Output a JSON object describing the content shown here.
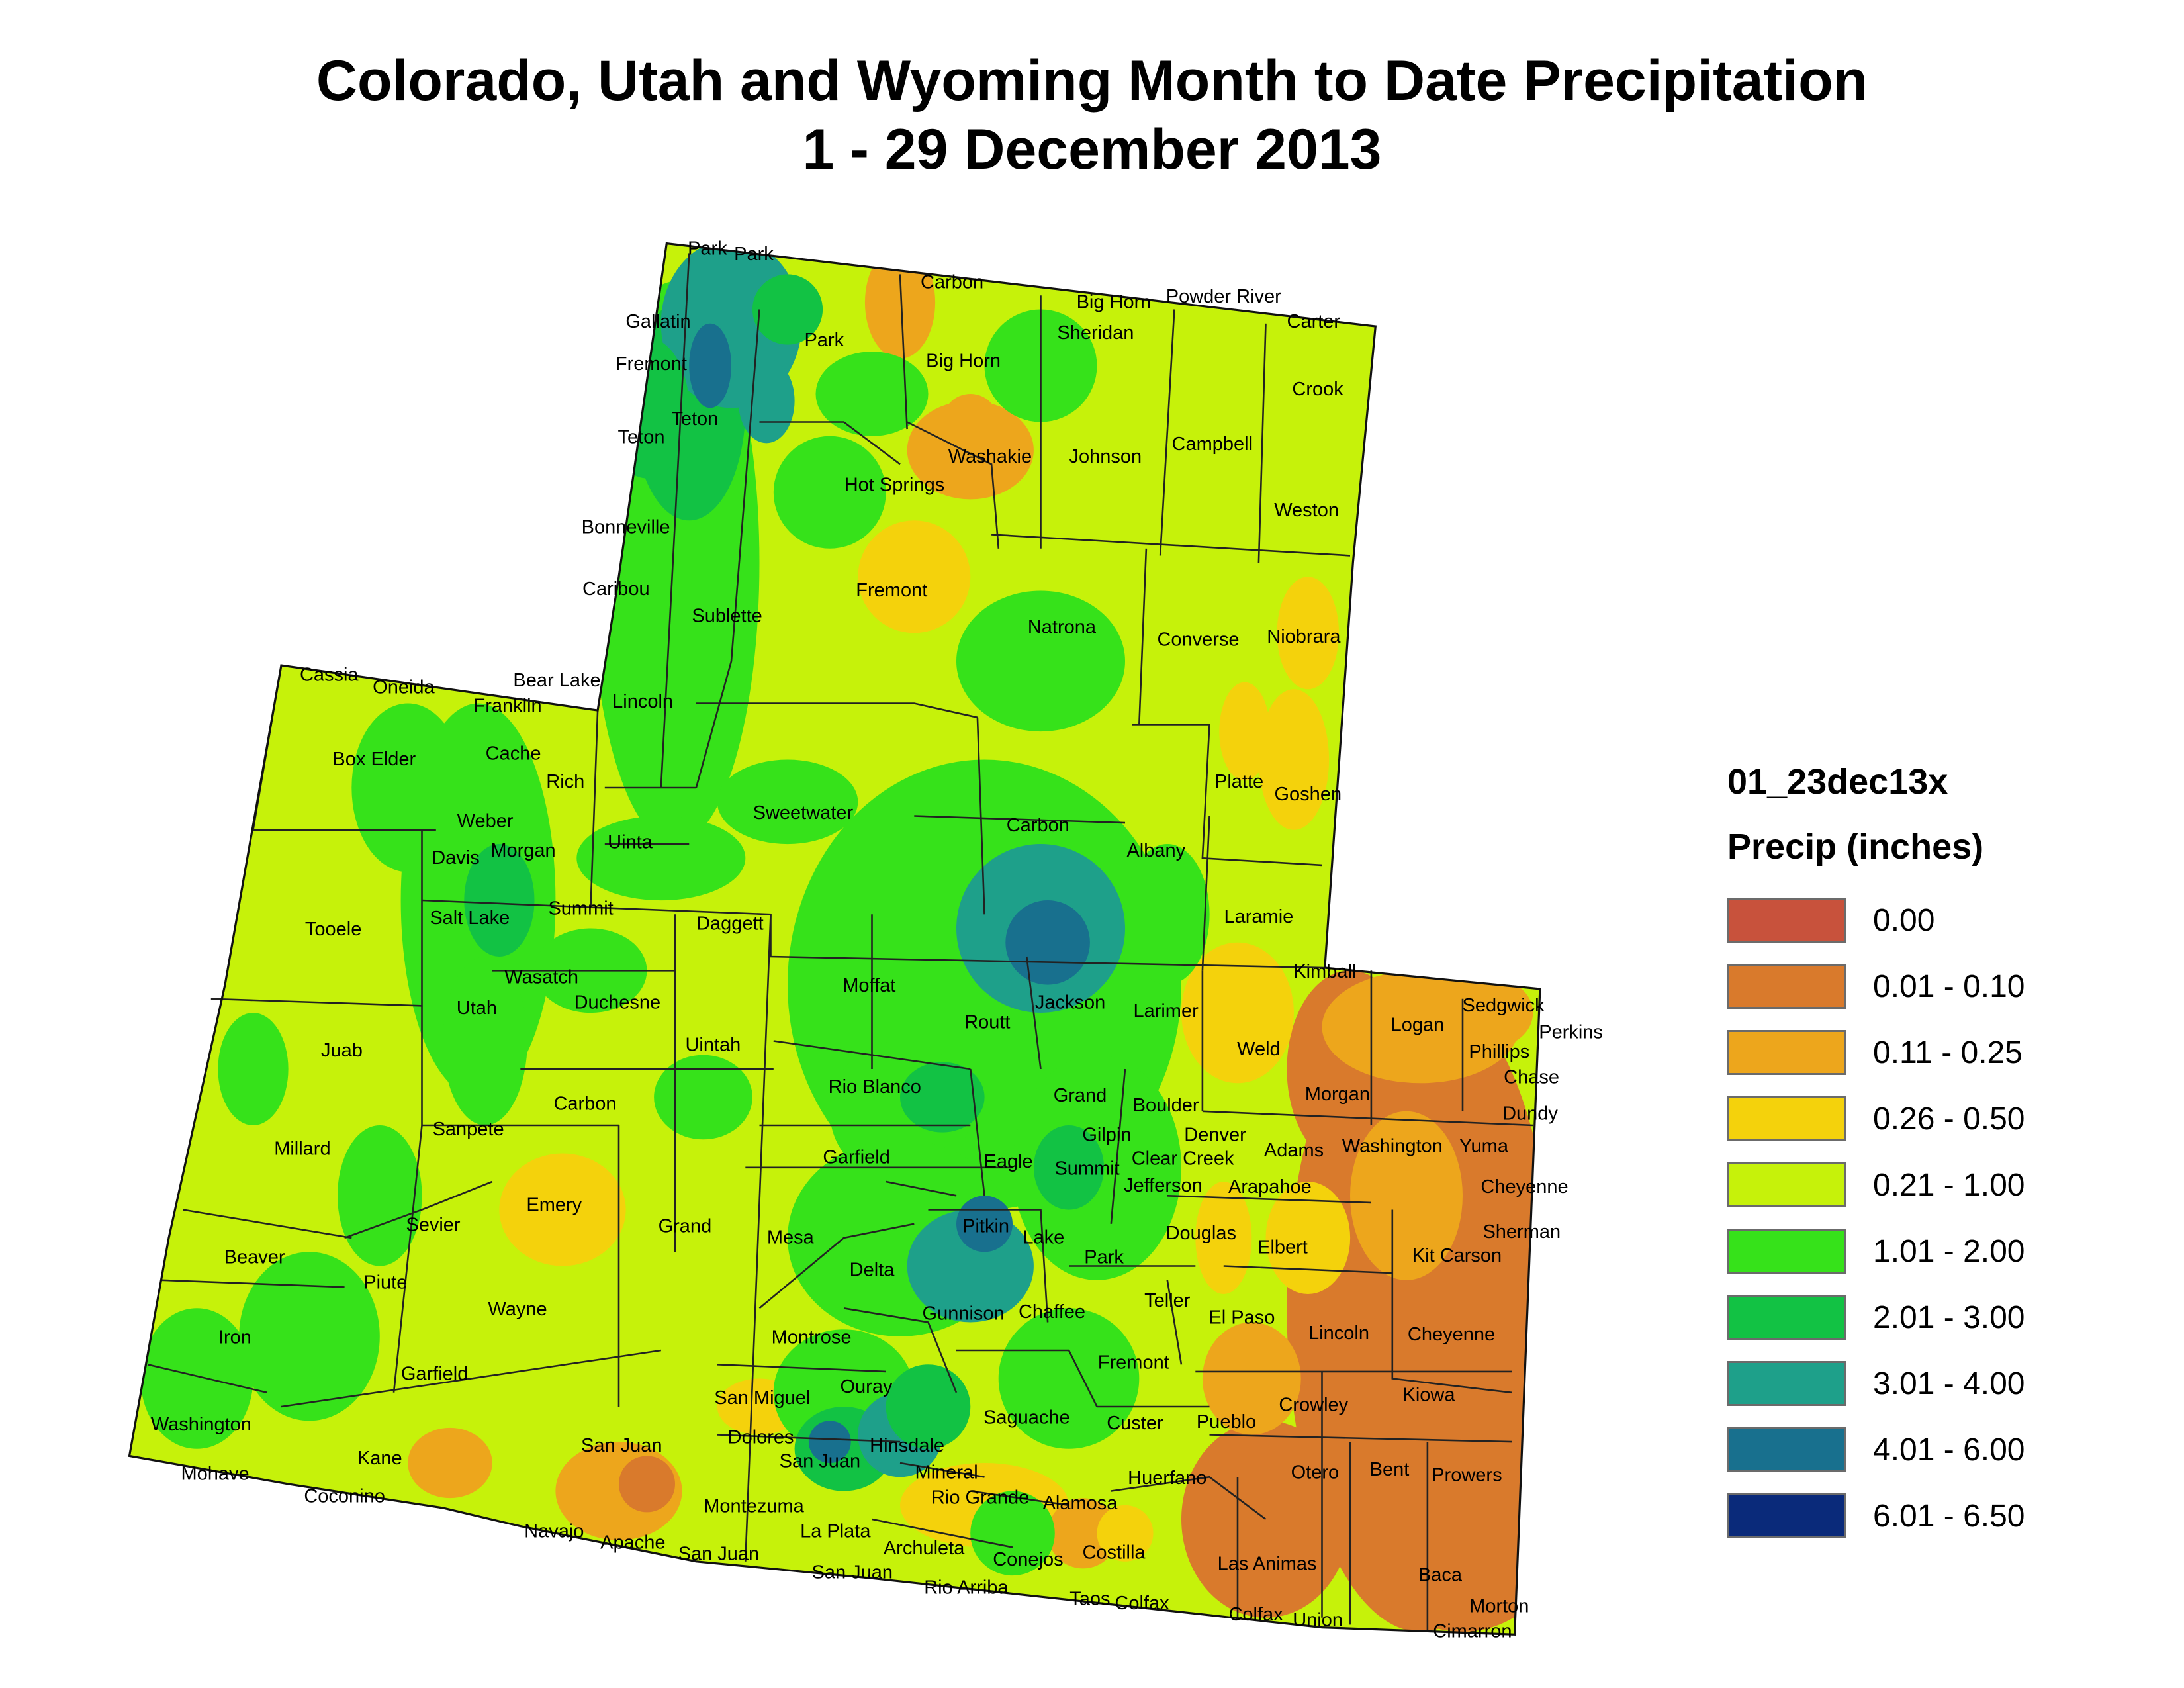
{
  "title": {
    "line1": "Colorado, Utah and Wyoming Month to Date Precipitation",
    "line2": "1 - 29 December 2013"
  },
  "legend": {
    "layer_name": "01_23dec13x",
    "title": "Precip (inches)",
    "classes": [
      {
        "label": "0.00",
        "color": "#c8523c"
      },
      {
        "label": "0.01 - 0.10",
        "color": "#d97a2c"
      },
      {
        "label": "0.11 - 0.25",
        "color": "#eda61c"
      },
      {
        "label": "0.26 - 0.50",
        "color": "#f4d20c"
      },
      {
        "label": "0.21 - 1.00",
        "color": "#c6f20a"
      },
      {
        "label": "1.01 - 2.00",
        "color": "#36e21a"
      },
      {
        "label": "2.01 - 3.00",
        "color": "#12c244"
      },
      {
        "label": "3.01 - 4.00",
        "color": "#1ea08a"
      },
      {
        "label": "4.01 - 6.00",
        "color": "#18708e"
      },
      {
        "label": "6.01 - 6.50",
        "color": "#0a2a7a"
      }
    ]
  },
  "counties": [
    {
      "name": "Park"
    },
    {
      "name": "Park"
    },
    {
      "name": "Carbon"
    },
    {
      "name": "Big Horn"
    },
    {
      "name": "Powder River"
    },
    {
      "name": "Gallatin"
    },
    {
      "name": "Park"
    },
    {
      "name": "Sheridan"
    },
    {
      "name": "Carter"
    },
    {
      "name": "Fremont"
    },
    {
      "name": "Big Horn"
    },
    {
      "name": "Crook"
    },
    {
      "name": "Teton"
    },
    {
      "name": "Teton"
    },
    {
      "name": "Washakie"
    },
    {
      "name": "Johnson"
    },
    {
      "name": "Campbell"
    },
    {
      "name": "Hot Springs"
    },
    {
      "name": "Weston"
    },
    {
      "name": "Bonneville"
    },
    {
      "name": "Caribou"
    },
    {
      "name": "Fremont"
    },
    {
      "name": "Sublette"
    },
    {
      "name": "Natrona"
    },
    {
      "name": "Converse"
    },
    {
      "name": "Niobrara"
    },
    {
      "name": "Cassia"
    },
    {
      "name": "Oneida"
    },
    {
      "name": "Bear Lake"
    },
    {
      "name": "Lincoln"
    },
    {
      "name": "Franklin"
    },
    {
      "name": "Box Elder"
    },
    {
      "name": "Cache"
    },
    {
      "name": "Rich"
    },
    {
      "name": "Platte"
    },
    {
      "name": "Goshen"
    },
    {
      "name": "Sweetwater"
    },
    {
      "name": "Carbon"
    },
    {
      "name": "Weber"
    },
    {
      "name": "Davis"
    },
    {
      "name": "Morgan"
    },
    {
      "name": "Uinta"
    },
    {
      "name": "Albany"
    },
    {
      "name": "Summit"
    },
    {
      "name": "Laramie"
    },
    {
      "name": "Tooele"
    },
    {
      "name": "Salt Lake"
    },
    {
      "name": "Daggett"
    },
    {
      "name": "Kimball"
    },
    {
      "name": "Wasatch"
    },
    {
      "name": "Moffat"
    },
    {
      "name": "Duchesne"
    },
    {
      "name": "Jackson"
    },
    {
      "name": "Sedgwick"
    },
    {
      "name": "Utah"
    },
    {
      "name": "Larimer"
    },
    {
      "name": "Logan"
    },
    {
      "name": "Perkins"
    },
    {
      "name": "Routt"
    },
    {
      "name": "Juab"
    },
    {
      "name": "Uintah"
    },
    {
      "name": "Weld"
    },
    {
      "name": "Phillips"
    },
    {
      "name": "Chase"
    },
    {
      "name": "Rio Blanco"
    },
    {
      "name": "Grand"
    },
    {
      "name": "Morgan"
    },
    {
      "name": "Carbon"
    },
    {
      "name": "Boulder"
    },
    {
      "name": "Dundy"
    },
    {
      "name": "Sanpete"
    },
    {
      "name": "Gilpin"
    },
    {
      "name": "Denver"
    },
    {
      "name": "Washington"
    },
    {
      "name": "Yuma"
    },
    {
      "name": "Millard"
    },
    {
      "name": "Adams"
    },
    {
      "name": "Garfield"
    },
    {
      "name": "Eagle"
    },
    {
      "name": "Summit"
    },
    {
      "name": "Clear Creek"
    },
    {
      "name": "Jefferson"
    },
    {
      "name": "Arapahoe"
    },
    {
      "name": "Cheyenne"
    },
    {
      "name": "Emery"
    },
    {
      "name": "Sevier"
    },
    {
      "name": "Grand"
    },
    {
      "name": "Pitkin"
    },
    {
      "name": "Mesa"
    },
    {
      "name": "Lake"
    },
    {
      "name": "Douglas"
    },
    {
      "name": "Sherman"
    },
    {
      "name": "Elbert"
    },
    {
      "name": "Beaver"
    },
    {
      "name": "Kit Carson"
    },
    {
      "name": "Park"
    },
    {
      "name": "Delta"
    },
    {
      "name": "Piute"
    },
    {
      "name": "Teller"
    },
    {
      "name": "Wayne"
    },
    {
      "name": "Gunnison"
    },
    {
      "name": "Chaffee"
    },
    {
      "name": "El Paso"
    },
    {
      "name": "Lincoln"
    },
    {
      "name": "Cheyenne"
    },
    {
      "name": "Iron"
    },
    {
      "name": "Montrose"
    },
    {
      "name": "Garfield"
    },
    {
      "name": "Fremont"
    },
    {
      "name": "Ouray"
    },
    {
      "name": "Crowley"
    },
    {
      "name": "Kiowa"
    },
    {
      "name": "San Miguel"
    },
    {
      "name": "Saguache"
    },
    {
      "name": "Washington"
    },
    {
      "name": "Custer"
    },
    {
      "name": "Pueblo"
    },
    {
      "name": "San Juan"
    },
    {
      "name": "Dolores"
    },
    {
      "name": "Hinsdale"
    },
    {
      "name": "Kane"
    },
    {
      "name": "San Juan"
    },
    {
      "name": "Mineral"
    },
    {
      "name": "Otero"
    },
    {
      "name": "Bent"
    },
    {
      "name": "Prowers"
    },
    {
      "name": "Mohave"
    },
    {
      "name": "Huerfano"
    },
    {
      "name": "Coconino"
    },
    {
      "name": "Rio Grande"
    },
    {
      "name": "Alamosa"
    },
    {
      "name": "Montezuma"
    },
    {
      "name": "Navajo"
    },
    {
      "name": "La Plata"
    },
    {
      "name": "Apache"
    },
    {
      "name": "Archuleta"
    },
    {
      "name": "San Juan"
    },
    {
      "name": "Costilla"
    },
    {
      "name": "Conejos"
    },
    {
      "name": "Las Animas"
    },
    {
      "name": "Baca"
    },
    {
      "name": "San Juan"
    },
    {
      "name": "Rio Arriba"
    },
    {
      "name": "Taos"
    },
    {
      "name": "Colfax"
    },
    {
      "name": "Morton"
    },
    {
      "name": "Colfax"
    },
    {
      "name": "Union"
    },
    {
      "name": "Cimarron"
    }
  ]
}
